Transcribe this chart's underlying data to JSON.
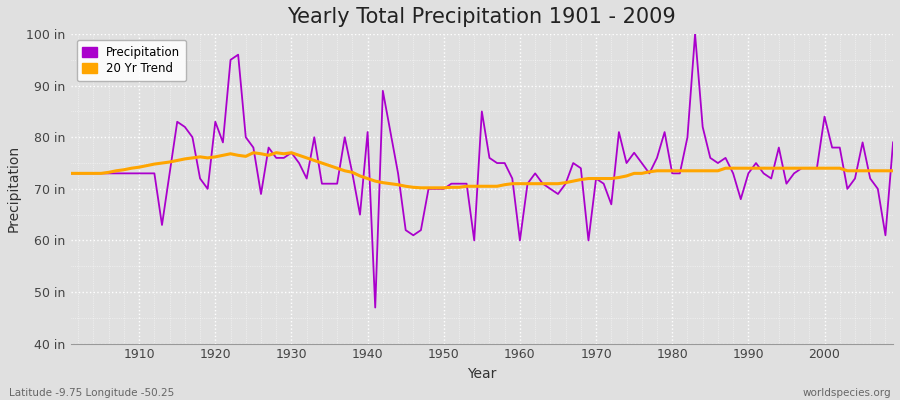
{
  "title": "Yearly Total Precipitation 1901 - 2009",
  "xlabel": "Year",
  "ylabel": "Precipitation",
  "ylim": [
    40,
    100
  ],
  "yticks": [
    40,
    50,
    60,
    70,
    80,
    90,
    100
  ],
  "ytick_labels": [
    "40 in",
    "50 in",
    "60 in",
    "70 in",
    "80 in",
    "90 in",
    "100 in"
  ],
  "xlim": [
    1901,
    2009
  ],
  "xticks": [
    1910,
    1920,
    1930,
    1940,
    1950,
    1960,
    1970,
    1980,
    1990,
    2000
  ],
  "precip_color": "#AA00CC",
  "trend_color": "#FFA500",
  "fig_bg_color": "#E0E0E0",
  "plot_bg_color": "#E0E0E0",
  "title_fontsize": 15,
  "axis_label_fontsize": 10,
  "tick_fontsize": 9,
  "footer_left": "Latitude -9.75 Longitude -50.25",
  "footer_right": "worldspecies.org",
  "years": [
    1901,
    1902,
    1903,
    1904,
    1905,
    1906,
    1907,
    1908,
    1909,
    1910,
    1911,
    1912,
    1913,
    1914,
    1915,
    1916,
    1917,
    1918,
    1919,
    1920,
    1921,
    1922,
    1923,
    1924,
    1925,
    1926,
    1927,
    1928,
    1929,
    1930,
    1931,
    1932,
    1933,
    1934,
    1935,
    1936,
    1937,
    1938,
    1939,
    1940,
    1941,
    1942,
    1943,
    1944,
    1945,
    1946,
    1947,
    1948,
    1949,
    1950,
    1951,
    1952,
    1953,
    1954,
    1955,
    1956,
    1957,
    1958,
    1959,
    1960,
    1961,
    1962,
    1963,
    1964,
    1965,
    1966,
    1967,
    1968,
    1969,
    1970,
    1971,
    1972,
    1973,
    1974,
    1975,
    1976,
    1977,
    1978,
    1979,
    1980,
    1981,
    1982,
    1983,
    1984,
    1985,
    1986,
    1987,
    1988,
    1989,
    1990,
    1991,
    1992,
    1993,
    1994,
    1995,
    1996,
    1997,
    1998,
    1999,
    2000,
    2001,
    2002,
    2003,
    2004,
    2005,
    2006,
    2007,
    2008,
    2009
  ],
  "precip": [
    73,
    73,
    73,
    73,
    73,
    73,
    73,
    73,
    73,
    73,
    73,
    73,
    63,
    73,
    83,
    82,
    80,
    72,
    70,
    83,
    79,
    95,
    96,
    80,
    78,
    69,
    78,
    76,
    76,
    77,
    75,
    72,
    80,
    71,
    71,
    71,
    80,
    73,
    65,
    81,
    47,
    89,
    81,
    73,
    62,
    61,
    62,
    70,
    70,
    70,
    71,
    71,
    71,
    60,
    85,
    76,
    75,
    75,
    72,
    60,
    71,
    73,
    71,
    70,
    69,
    71,
    75,
    74,
    60,
    72,
    71,
    67,
    81,
    75,
    77,
    75,
    73,
    76,
    81,
    73,
    73,
    80,
    100,
    82,
    76,
    75,
    76,
    73,
    68,
    73,
    75,
    73,
    72,
    78,
    71,
    73,
    74,
    74,
    74,
    84,
    78,
    78,
    70,
    72,
    79,
    72,
    70,
    61,
    79
  ],
  "trend": [
    73.0,
    73.0,
    73.0,
    73.0,
    73.0,
    73.2,
    73.5,
    73.7,
    74.0,
    74.2,
    74.5,
    74.8,
    75.0,
    75.2,
    75.5,
    75.8,
    76.0,
    76.2,
    76.0,
    76.2,
    76.5,
    76.8,
    76.5,
    76.3,
    77.0,
    76.8,
    76.5,
    77.0,
    76.8,
    77.0,
    76.5,
    76.0,
    75.5,
    75.0,
    74.5,
    74.0,
    73.5,
    73.2,
    72.5,
    72.0,
    71.5,
    71.2,
    71.0,
    70.8,
    70.5,
    70.3,
    70.2,
    70.2,
    70.2,
    70.2,
    70.3,
    70.3,
    70.5,
    70.5,
    70.5,
    70.5,
    70.5,
    70.8,
    71.0,
    71.0,
    71.0,
    71.0,
    71.0,
    71.0,
    71.0,
    71.2,
    71.5,
    71.8,
    72.0,
    72.0,
    72.0,
    72.0,
    72.2,
    72.5,
    73.0,
    73.0,
    73.3,
    73.5,
    73.5,
    73.5,
    73.5,
    73.5,
    73.5,
    73.5,
    73.5,
    73.5,
    74.0,
    74.0,
    74.0,
    74.0,
    74.0,
    74.0,
    74.0,
    74.0,
    74.0,
    74.0,
    74.0,
    74.0,
    74.0,
    74.0,
    74.0,
    74.0,
    73.5,
    73.5,
    73.5,
    73.5,
    73.5,
    73.5,
    73.5
  ]
}
